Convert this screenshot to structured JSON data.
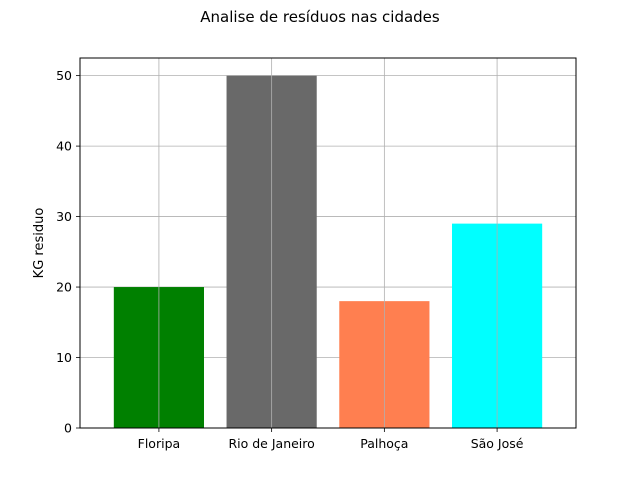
{
  "chart_data": {
    "type": "bar",
    "title": "Analise de resíduos nas cidades",
    "xlabel": "",
    "ylabel": "KG residuo",
    "categories": [
      "Floripa",
      "Rio de Janeiro",
      "Palhoça",
      "São José"
    ],
    "values": [
      20,
      50,
      18,
      29
    ],
    "colors": [
      "#008000",
      "#696969",
      "#ff7f50",
      "#00ffff"
    ],
    "ylim": [
      0,
      52.5
    ],
    "yticks": [
      0,
      10,
      20,
      30,
      40,
      50
    ],
    "grid": true,
    "legend": "none"
  }
}
